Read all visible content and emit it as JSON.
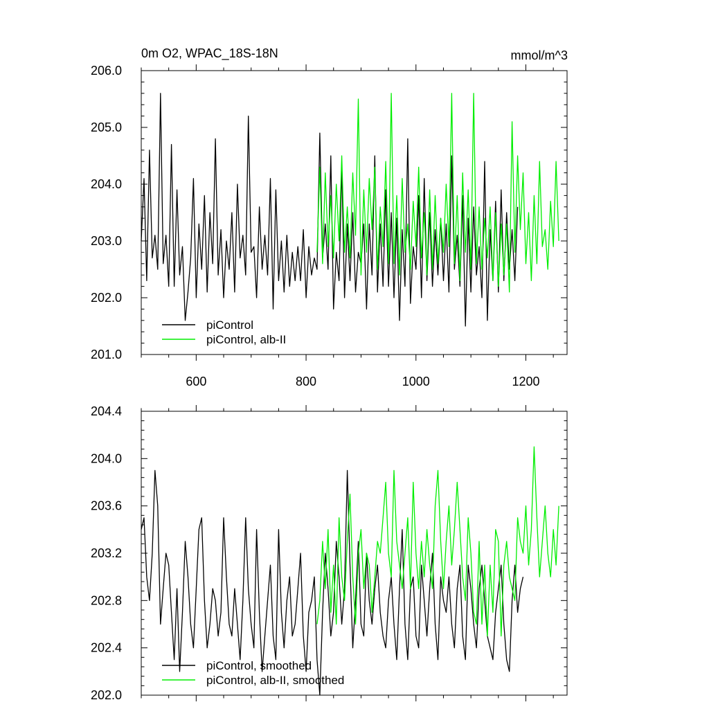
{
  "chart_data": [
    {
      "type": "line",
      "title": "0m O2, WPAC_18S-18N",
      "title_right": "mmol/m^3",
      "xlabel": "",
      "ylabel": "",
      "xlim": [
        500,
        1275
      ],
      "ylim": [
        201.0,
        206.0
      ],
      "xticks": [
        600,
        800,
        1000,
        1200
      ],
      "xtick_labels": [
        "600",
        "800",
        "1000",
        "1200"
      ],
      "yticks": [
        201.0,
        202.0,
        203.0,
        204.0,
        205.0,
        206.0
      ],
      "ytick_labels": [
        "201.0",
        "202.0",
        "203.0",
        "204.0",
        "205.0",
        "206.0"
      ],
      "grid": false,
      "legend_position": "bottom-left",
      "series": [
        {
          "name": "piControl",
          "color": "#000000",
          "x_start": 500,
          "x_step": 5,
          "values": [
            203.0,
            204.1,
            202.3,
            204.6,
            202.7,
            203.1,
            202.5,
            205.6,
            202.6,
            203.1,
            202.2,
            204.7,
            202.2,
            203.9,
            202.4,
            202.9,
            201.6,
            202.1,
            202.7,
            204.1,
            202.0,
            203.3,
            202.5,
            203.8,
            202.1,
            203.5,
            202.6,
            204.8,
            202.4,
            203.2,
            202.0,
            203.0,
            202.5,
            203.5,
            202.1,
            204.0,
            202.7,
            203.1,
            202.4,
            205.2,
            202.8,
            202.9,
            202.0,
            203.6,
            202.5,
            203.1,
            202.4,
            204.1,
            201.8,
            203.9,
            202.3,
            203.0,
            202.1,
            203.1,
            202.2,
            202.8,
            202.3,
            202.9,
            202.3,
            203.2,
            202.0,
            202.9,
            202.4,
            202.7,
            202.5,
            204.9,
            202.7,
            203.3,
            202.5,
            204.5,
            201.8,
            202.8,
            202.3,
            204.3,
            202.0,
            203.3,
            202.3,
            203.5,
            202.1,
            202.8,
            202.6,
            203.3,
            201.8,
            203.3,
            202.4,
            204.5,
            202.1,
            203.3,
            202.2,
            203.9,
            202.2,
            203.5,
            202.0,
            203.4,
            201.6,
            203.2,
            202.2,
            204.8,
            201.9,
            202.9,
            202.5,
            203.8,
            202.0,
            204.1,
            202.3,
            203.5,
            202.2,
            203.2,
            202.4,
            203.4,
            202.3,
            203.3,
            202.1,
            204.5,
            202.5,
            203.1,
            202.2,
            203.8,
            201.5,
            203.4,
            202.1,
            203.6,
            202.4,
            202.9,
            202.0,
            204.4,
            201.6,
            203.2,
            202.3,
            203.7,
            202.1,
            203.9,
            202.3,
            203.5,
            202.5,
            203.2,
            202.3,
            203.6
          ]
        },
        {
          "name": "piControl, alb-II",
          "color": "#00ee00",
          "x_start": 820,
          "x_step": 5,
          "values": [
            202.8,
            204.3,
            202.6,
            204.2,
            202.9,
            203.8,
            202.7,
            204.0,
            203.0,
            204.5,
            202.8,
            203.6,
            202.7,
            204.2,
            203.1,
            205.5,
            202.4,
            203.9,
            202.8,
            204.1,
            203.2,
            204.3,
            202.5,
            203.6,
            202.9,
            204.4,
            202.6,
            205.6,
            202.6,
            203.8,
            202.4,
            204.1,
            202.8,
            203.3,
            202.5,
            203.7,
            202.9,
            204.3,
            202.7,
            203.5,
            202.4,
            203.9,
            202.5,
            203.8,
            202.6,
            203.4,
            202.8,
            204.0,
            202.9,
            205.6,
            202.6,
            203.8,
            202.3,
            204.2,
            202.8,
            203.9,
            202.5,
            205.6,
            202.6,
            203.6,
            202.5,
            203.4,
            202.7,
            203.6,
            202.3,
            203.5,
            202.2,
            203.3,
            202.4,
            203.3,
            202.1,
            205.1,
            202.8,
            204.5,
            203.2,
            204.2,
            202.6,
            203.5,
            202.3,
            203.8,
            202.6,
            204.4,
            202.9,
            203.2,
            202.5,
            203.7,
            202.9,
            204.4,
            203.0
          ]
        }
      ]
    },
    {
      "type": "line",
      "title": "",
      "xlabel": "",
      "ylabel": "",
      "xlim": [
        500,
        1275
      ],
      "ylim": [
        202.0,
        204.4
      ],
      "xticks": [
        600,
        800,
        1000,
        1200
      ],
      "xtick_labels": [],
      "yticks": [
        202.0,
        202.4,
        202.8,
        203.2,
        203.6,
        204.0,
        204.4
      ],
      "ytick_labels": [
        "202.0",
        "202.4",
        "202.8",
        "203.2",
        "203.6",
        "204.0",
        "204.4"
      ],
      "grid": false,
      "legend_position": "bottom-left",
      "series": [
        {
          "name": "piControl, smoothed",
          "color": "#000000",
          "x_start": 500,
          "x_step": 5,
          "values": [
            203.4,
            203.5,
            203.0,
            202.8,
            203.2,
            203.9,
            203.6,
            202.6,
            202.9,
            203.2,
            203.1,
            202.7,
            202.3,
            202.9,
            202.2,
            202.7,
            203.3,
            203.0,
            202.6,
            202.4,
            202.9,
            203.4,
            203.5,
            202.8,
            202.4,
            202.6,
            202.9,
            202.8,
            202.5,
            202.7,
            203.5,
            203.0,
            202.6,
            202.5,
            202.9,
            202.6,
            202.3,
            202.8,
            203.5,
            202.9,
            202.6,
            202.4,
            203.4,
            202.7,
            202.2,
            202.5,
            202.8,
            203.1,
            202.5,
            202.3,
            203.4,
            202.7,
            202.4,
            202.8,
            203.0,
            202.5,
            202.6,
            202.9,
            203.2,
            202.5,
            202.2,
            202.7,
            202.8,
            203.0,
            202.3,
            202.0,
            202.7,
            203.2,
            202.9,
            202.5,
            202.7,
            203.3,
            203.0,
            202.6,
            202.9,
            203.9,
            203.1,
            202.4,
            202.8,
            203.3,
            202.6,
            202.5,
            203.2,
            202.8,
            202.6,
            202.9,
            203.1,
            202.7,
            202.5,
            202.4,
            202.8,
            203.0,
            202.6,
            202.3,
            202.9,
            203.4,
            202.6,
            202.3,
            202.9,
            203.0,
            202.5,
            202.4,
            203.1,
            202.8,
            202.5,
            202.9,
            203.2,
            202.6,
            202.3,
            203.0,
            202.8,
            202.7,
            203.0,
            202.6,
            202.4,
            202.9,
            203.1,
            202.5,
            202.3,
            203.1,
            202.9,
            202.6,
            202.4,
            202.9,
            203.1,
            202.8,
            202.5,
            202.4,
            202.3,
            202.7,
            202.9,
            203.1,
            202.6,
            202.3,
            202.2,
            202.8,
            203.1,
            202.7,
            202.9,
            203.0
          ]
        },
        {
          "name": "piControl, alb-II, smoothed",
          "color": "#00ee00",
          "x_start": 820,
          "x_step": 5,
          "values": [
            202.6,
            202.8,
            203.3,
            202.9,
            203.4,
            202.7,
            203.1,
            202.6,
            203.5,
            203.0,
            202.8,
            203.3,
            203.7,
            203.0,
            202.6,
            203.2,
            203.4,
            202.9,
            203.2,
            203.1,
            202.7,
            203.0,
            203.3,
            203.2,
            203.5,
            203.8,
            203.2,
            203.0,
            203.9,
            203.3,
            203.1,
            202.9,
            203.2,
            203.5,
            202.9,
            203.8,
            203.2,
            202.9,
            203.3,
            203.0,
            203.4,
            203.1,
            202.9,
            203.6,
            203.9,
            203.3,
            202.9,
            203.3,
            203.6,
            203.1,
            203.4,
            203.8,
            203.4,
            203.0,
            202.8,
            203.5,
            203.2,
            202.7,
            202.6,
            203.3,
            202.6,
            203.1,
            202.5,
            203.1,
            202.7,
            203.4,
            203.3,
            202.5,
            203.1,
            203.3,
            203.0,
            202.9,
            202.8,
            203.5,
            203.3,
            203.2,
            203.6,
            203.1,
            203.4,
            204.1,
            203.5,
            203.0,
            203.3,
            203.6,
            203.2,
            203.0,
            203.4,
            203.1,
            203.6
          ]
        }
      ]
    }
  ]
}
